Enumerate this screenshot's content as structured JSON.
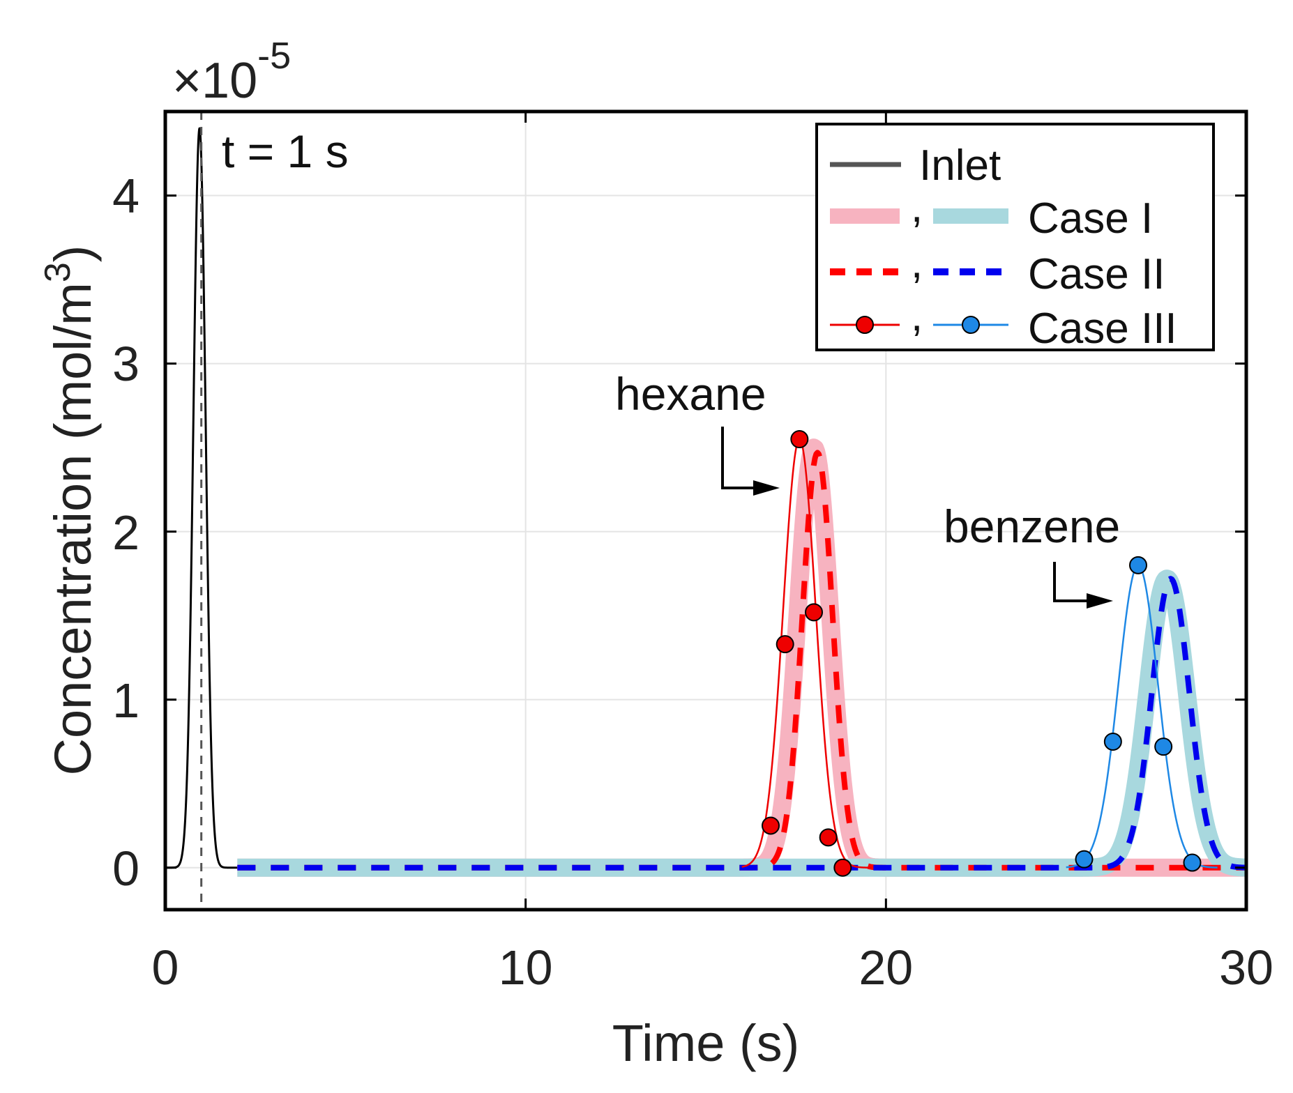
{
  "chart_data": {
    "type": "line",
    "title": "",
    "xlabel": "Time (s)",
    "ylabel_main": "Concentration (mol/m",
    "ylabel_sup": "3",
    "ylabel_close": ")",
    "xlim": [
      0,
      30
    ],
    "ylim": [
      -0.25,
      4.5
    ],
    "xticks": [
      "0",
      "10",
      "20",
      "30"
    ],
    "yticks": [
      "0",
      "1",
      "2",
      "3",
      "4"
    ],
    "xtick_values": [
      0,
      10,
      20,
      30
    ],
    "ytick_values": [
      0,
      1,
      2,
      3,
      4
    ],
    "scale_prefix": "×10",
    "scale_exponent": "-5",
    "grid": true,
    "legend": {
      "position": "top-right",
      "entries": [
        {
          "label": "Inlet",
          "separator": ""
        },
        {
          "label": "Case I",
          "separator": ","
        },
        {
          "label": "Case II",
          "separator": ","
        },
        {
          "label": "Case III",
          "separator": ","
        }
      ]
    },
    "annotations": {
      "time_label": "t = 1 s",
      "time_marker_x": 1,
      "hexane": "hexane",
      "benzene": "benzene"
    },
    "colors": {
      "inlet": "#000000",
      "hexane_case1": "#f7b3c0",
      "benzene_case1": "#a8d8de",
      "hexane_case2": "#ff0000",
      "benzene_case2": "#0000ee",
      "hexane_case3": "#ee0000",
      "benzene_case3": "#1e88e5",
      "grid": "#e4e4e4"
    },
    "series": [
      {
        "name": "Inlet",
        "peaks": [
          {
            "center": 0.95,
            "amplitude": 4.4,
            "sigma": 0.17
          }
        ],
        "x_range": [
          0,
          2
        ]
      },
      {
        "name": "hexane Case I",
        "peaks": [
          {
            "center": 18.0,
            "amplitude": 2.5,
            "sigma": 0.45
          }
        ],
        "x_range": [
          2,
          30
        ]
      },
      {
        "name": "benzene Case I",
        "peaks": [
          {
            "center": 27.8,
            "amplitude": 1.72,
            "sigma": 0.55
          }
        ],
        "x_range": [
          2,
          30
        ]
      },
      {
        "name": "hexane Case II",
        "peaks": [
          {
            "center": 18.1,
            "amplitude": 2.47,
            "sigma": 0.42
          }
        ],
        "x_range": [
          2,
          30
        ]
      },
      {
        "name": "benzene Case II",
        "peaks": [
          {
            "center": 27.9,
            "amplitude": 1.72,
            "sigma": 0.52
          }
        ],
        "x_range": [
          2,
          30
        ]
      },
      {
        "name": "hexane Case III",
        "peaks": [
          {
            "center": 17.6,
            "amplitude": 2.55,
            "sigma": 0.45
          }
        ],
        "x_range": [
          16.0,
          19.6
        ],
        "markers": [
          {
            "x": 16.8,
            "y": 0.25
          },
          {
            "x": 17.2,
            "y": 1.33
          },
          {
            "x": 17.6,
            "y": 2.55
          },
          {
            "x": 18.0,
            "y": 1.52
          },
          {
            "x": 18.4,
            "y": 0.18
          },
          {
            "x": 18.8,
            "y": 0.0
          }
        ]
      },
      {
        "name": "benzene Case III",
        "peaks": [
          {
            "center": 27.0,
            "amplitude": 1.8,
            "sigma": 0.55
          }
        ],
        "x_range": [
          25.0,
          29.2
        ],
        "markers": [
          {
            "x": 25.5,
            "y": 0.05
          },
          {
            "x": 26.3,
            "y": 0.75
          },
          {
            "x": 27.0,
            "y": 1.8
          },
          {
            "x": 27.7,
            "y": 0.72
          },
          {
            "x": 28.5,
            "y": 0.03
          }
        ]
      }
    ]
  }
}
